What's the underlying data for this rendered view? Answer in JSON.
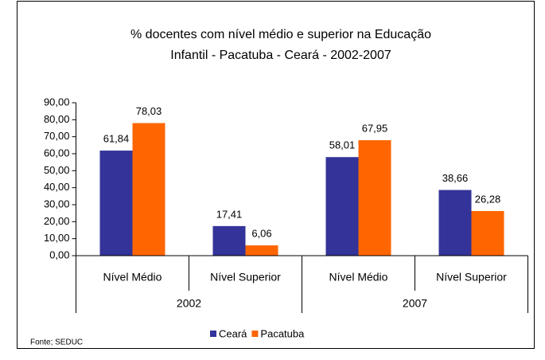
{
  "chart_data": {
    "type": "bar",
    "title": [
      "% docentes com nível médio e superior na  Educação",
      "Infantil - Pacatuba - Ceará - 2002-2007"
    ],
    "categories": [
      "Nível Médio",
      "Nível Superior",
      "Nível Médio",
      "Nível Superior"
    ],
    "groups": [
      "2002",
      "2007"
    ],
    "series": [
      {
        "name": "Ceará",
        "color": "#333399",
        "values": [
          61.84,
          17.41,
          58.01,
          38.66
        ],
        "value_labels": [
          "61,84",
          "17,41",
          "58,01",
          "38,66"
        ]
      },
      {
        "name": "Pacatuba",
        "color": "#ff6600",
        "values": [
          78.03,
          6.06,
          67.95,
          26.28
        ],
        "value_labels": [
          "78,03",
          "6,06",
          "67,95",
          "26,28"
        ]
      }
    ],
    "ylim": [
      0,
      90
    ],
    "yticks": [
      {
        "value": 0,
        "label": "0,00"
      },
      {
        "value": 10,
        "label": "10,00"
      },
      {
        "value": 20,
        "label": "20,00"
      },
      {
        "value": 30,
        "label": "30,00"
      },
      {
        "value": 40,
        "label": "40,00"
      },
      {
        "value": 50,
        "label": "50,00"
      },
      {
        "value": 60,
        "label": "60,00"
      },
      {
        "value": 70,
        "label": "70,00"
      },
      {
        "value": 80,
        "label": "80,00"
      },
      {
        "value": 90,
        "label": "90,00"
      }
    ],
    "legend": "bottom",
    "source": "Fonte; SEDUC"
  }
}
